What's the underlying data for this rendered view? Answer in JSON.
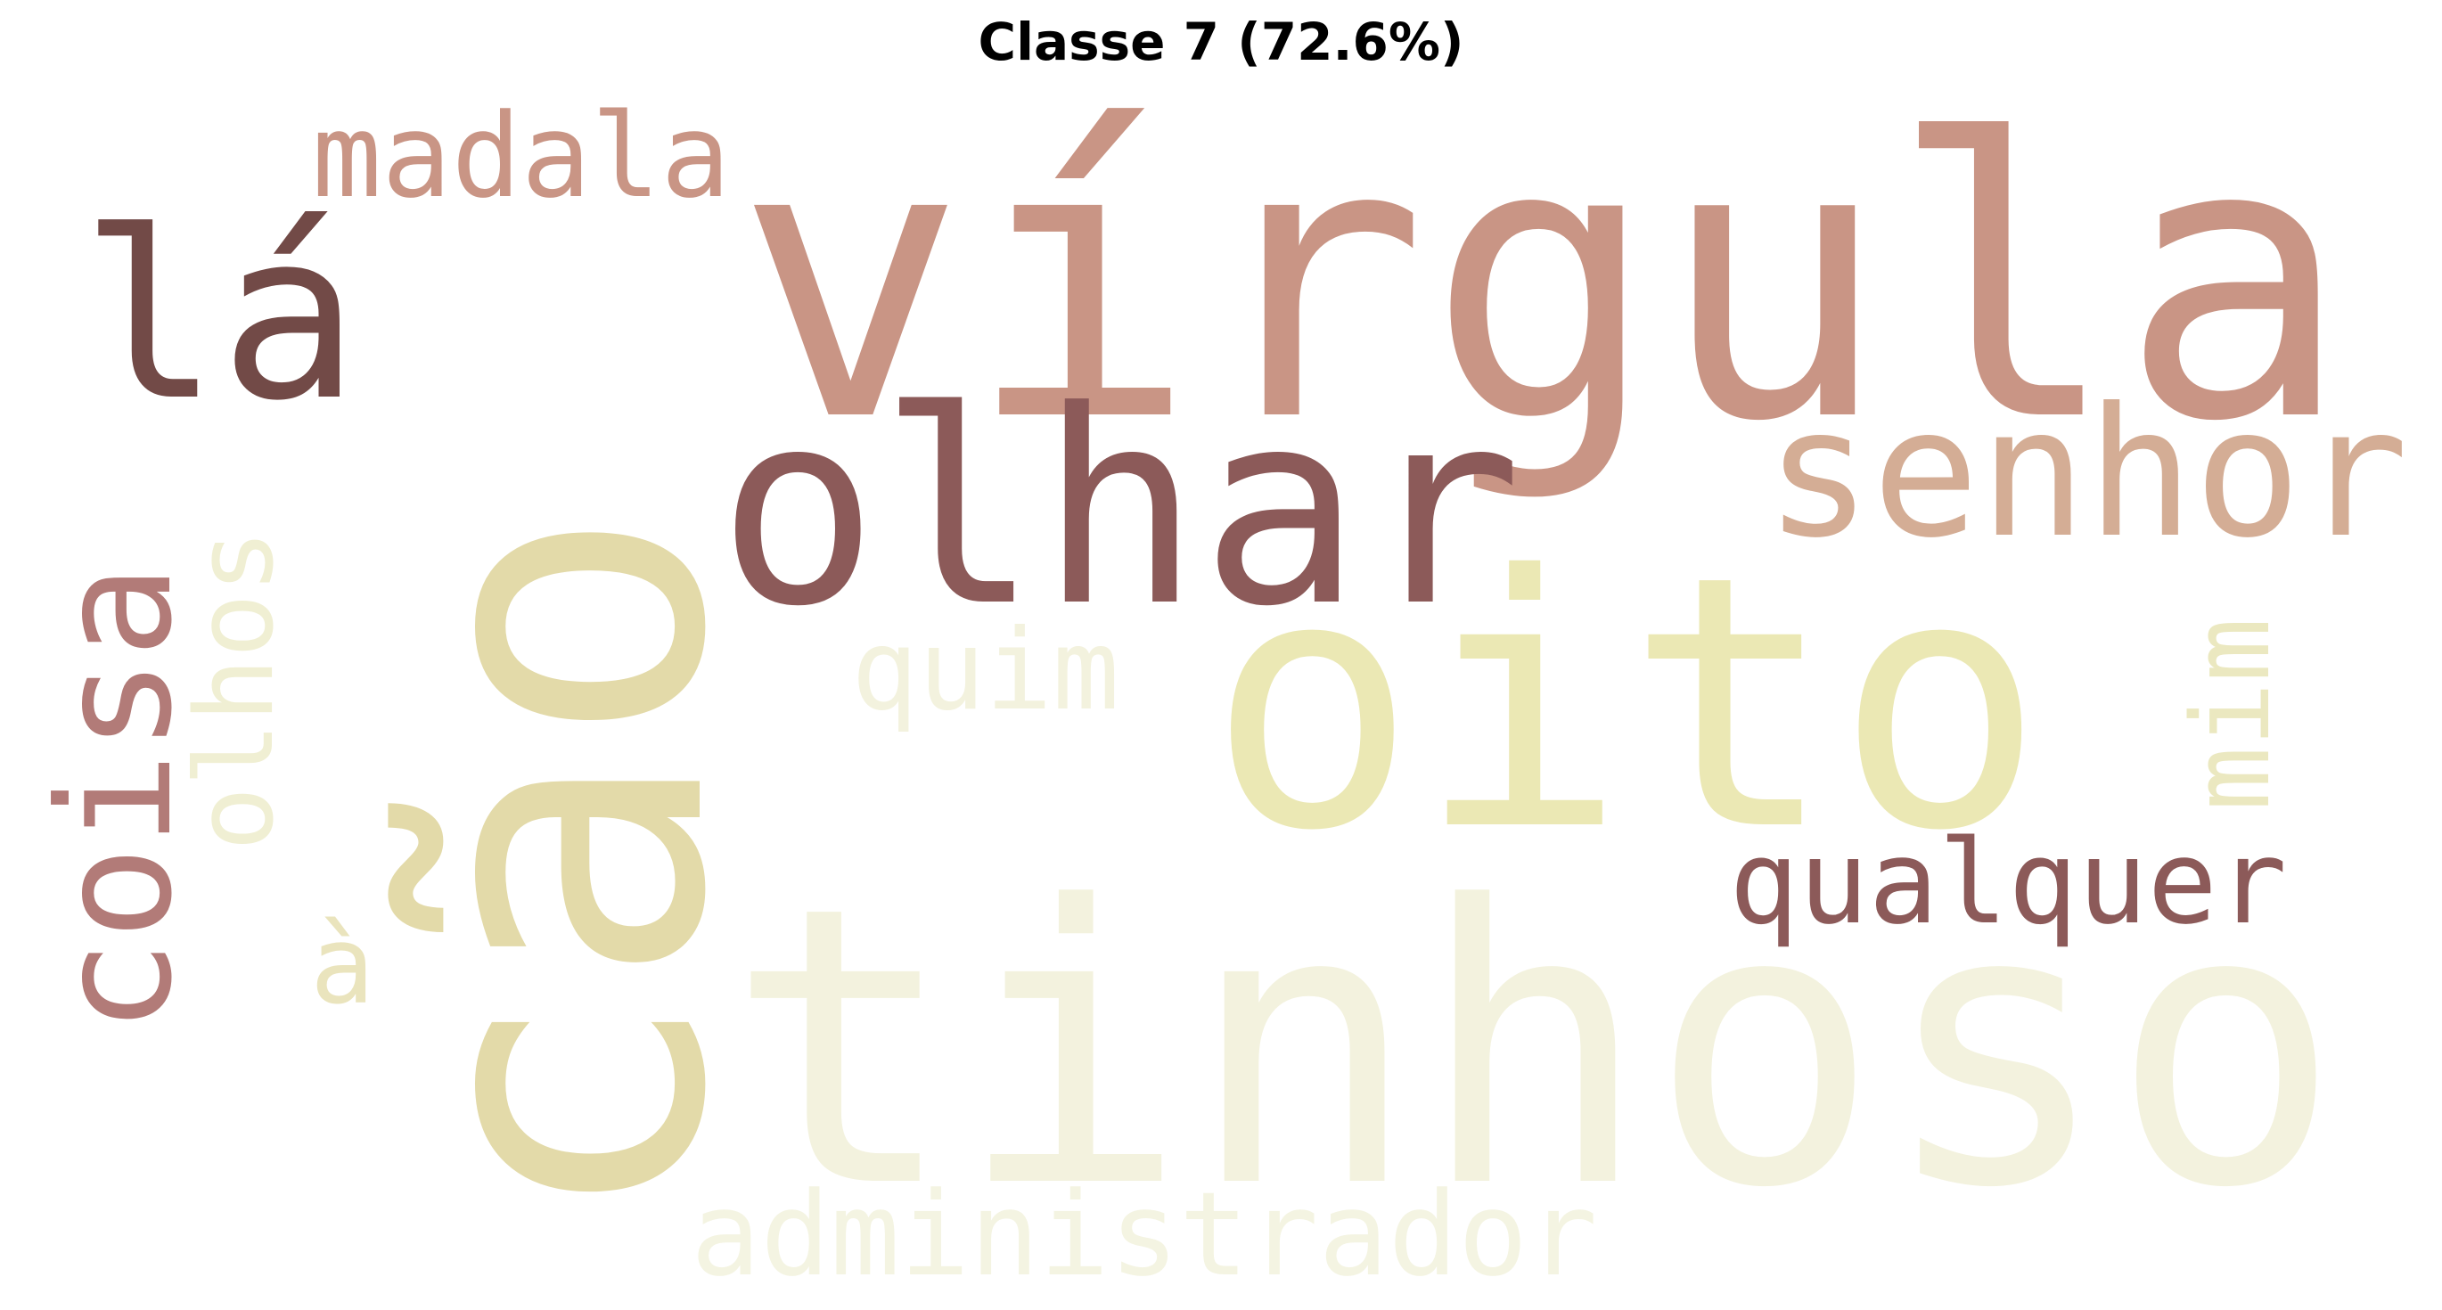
{
  "title": "Classe 7 (72.6%)",
  "words": [
    {
      "text": "vírgula",
      "color": "#c99585"
    },
    {
      "text": "cão",
      "color": "#e3daa9"
    },
    {
      "text": "oito",
      "color": "#ebe8b4"
    },
    {
      "text": "tinhoso",
      "color": "#f3f2de"
    },
    {
      "text": "olhar",
      "color": "#8c5a59"
    },
    {
      "text": "lá",
      "color": "#724a47"
    },
    {
      "text": "senhor",
      "color": "#d4ad95"
    },
    {
      "text": "coisa",
      "color": "#b27b78"
    },
    {
      "text": "madala",
      "color": "#c99585"
    },
    {
      "text": "qualquer",
      "color": "#8c5a59"
    },
    {
      "text": "olhos",
      "color": "#f0efd3"
    },
    {
      "text": "quim",
      "color": "#f3f2de"
    },
    {
      "text": "mim",
      "color": "#ebe8c0"
    },
    {
      "text": "administrador",
      "color": "#f4f4e2"
    },
    {
      "text": "à",
      "color": "#eae4bd"
    }
  ]
}
